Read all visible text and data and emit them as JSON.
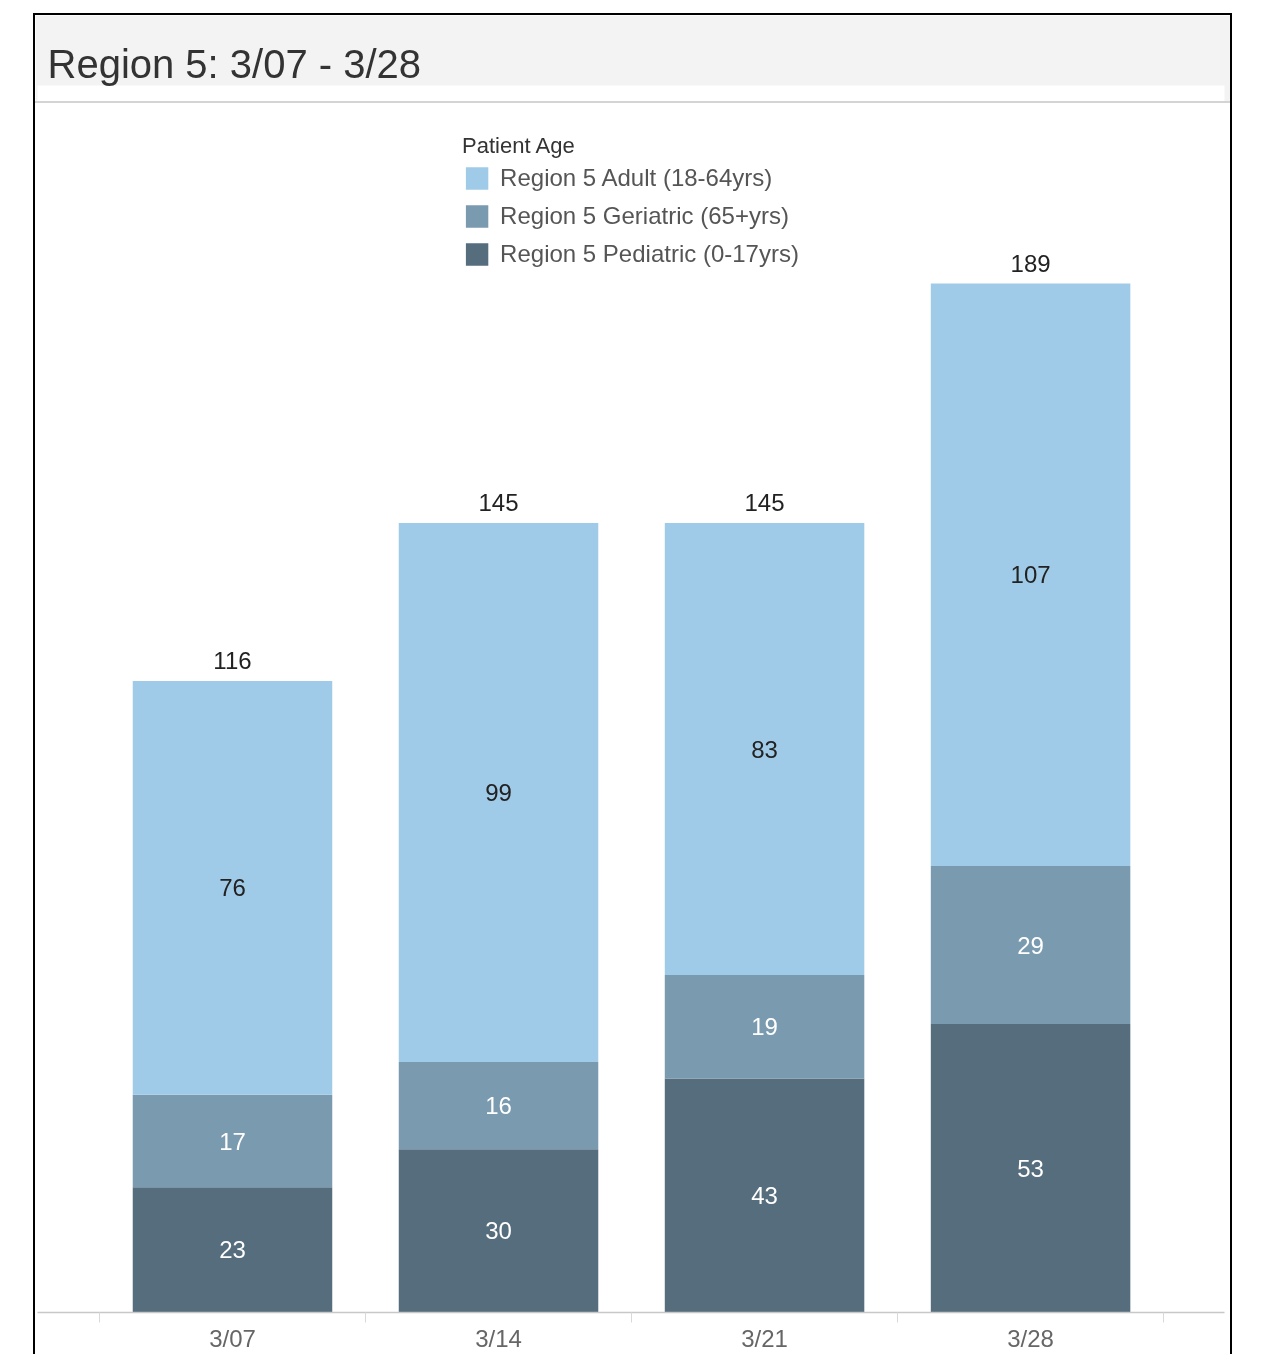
{
  "chart_data": {
    "type": "bar",
    "title": "Region 5: 3/07 - 3/28",
    "categories": [
      "3/07",
      "3/14",
      "3/21",
      "3/28"
    ],
    "stacked": true,
    "series": [
      {
        "name": "Region 5 Pediatric (0-17yrs)",
        "color": "#566d7e",
        "values": [
          23,
          30,
          43,
          53
        ]
      },
      {
        "name": "Region 5 Geriatric (65+yrs)",
        "color": "#7a9aaf",
        "values": [
          17,
          16,
          19,
          29
        ]
      },
      {
        "name": "Region 5 Adult (18-64yrs)",
        "color": "#a0cbe8",
        "values": [
          76,
          99,
          83,
          107
        ]
      }
    ],
    "legend": "top",
    "legend_title": "Patient Age",
    "data_labels": true,
    "totals": [
      "116",
      "145",
      "145",
      "189"
    ],
    "tick_labels": "x"
  }
}
